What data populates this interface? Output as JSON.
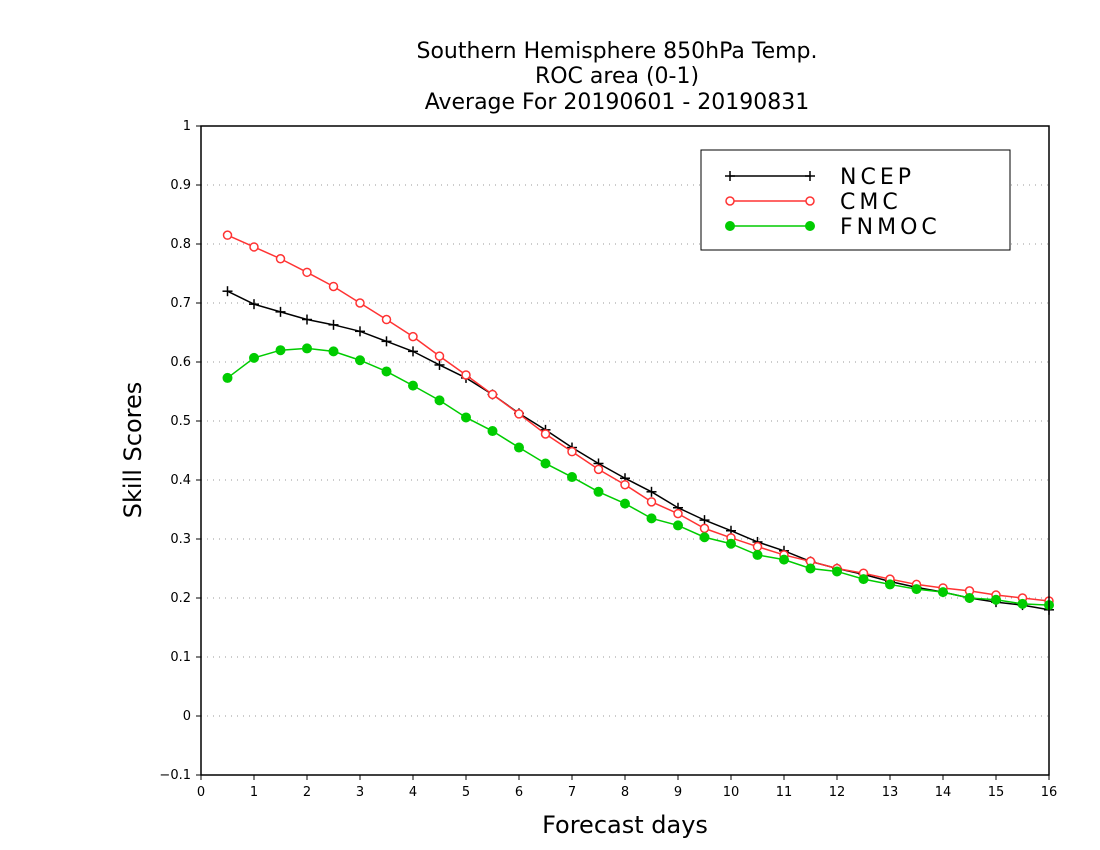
{
  "chart_data": {
    "type": "line",
    "title": [
      "Southern Hemisphere 850hPa Temp.",
      "ROC area (0-1)",
      "Average For 20190601 - 20190831"
    ],
    "xlabel": "Forecast days",
    "ylabel": "Skill Scores",
    "xlim": [
      0,
      16
    ],
    "ylim": [
      -0.1,
      1
    ],
    "xticks": [
      "0",
      "1",
      "2",
      "3",
      "4",
      "5",
      "6",
      "7",
      "8",
      "9",
      "10",
      "11",
      "12",
      "13",
      "14",
      "15",
      "16"
    ],
    "yticks": [
      "−0.1",
      "0",
      "0.1",
      "0.2",
      "0.3",
      "0.4",
      "0.5",
      "0.6",
      "0.7",
      "0.8",
      "0.9",
      "1"
    ],
    "grid": true,
    "legend_position": "top-right",
    "x": [
      0.5,
      1,
      1.5,
      2,
      2.5,
      3,
      3.5,
      4,
      4.5,
      5,
      5.5,
      6,
      6.5,
      7,
      7.5,
      8,
      8.5,
      9,
      9.5,
      10,
      10.5,
      11,
      11.5,
      12,
      12.5,
      13,
      13.5,
      14,
      14.5,
      15,
      15.5,
      16
    ],
    "series": [
      {
        "name": "NCEP",
        "color": "#000000",
        "marker": "plus",
        "values": [
          0.72,
          0.698,
          0.685,
          0.672,
          0.663,
          0.652,
          0.635,
          0.618,
          0.595,
          0.573,
          0.545,
          0.513,
          0.485,
          0.455,
          0.428,
          0.403,
          0.38,
          0.353,
          0.332,
          0.314,
          0.295,
          0.28,
          0.262,
          0.25,
          0.24,
          0.228,
          0.218,
          0.21,
          0.2,
          0.193,
          0.188,
          0.18
        ]
      },
      {
        "name": "CMC",
        "color": "#ff3333",
        "marker": "open-circle",
        "values": [
          0.815,
          0.795,
          0.775,
          0.752,
          0.728,
          0.7,
          0.672,
          0.643,
          0.61,
          0.578,
          0.545,
          0.512,
          0.478,
          0.448,
          0.418,
          0.392,
          0.363,
          0.343,
          0.318,
          0.302,
          0.287,
          0.273,
          0.262,
          0.25,
          0.242,
          0.232,
          0.223,
          0.217,
          0.212,
          0.205,
          0.2,
          0.195
        ]
      },
      {
        "name": "FNMOC",
        "color": "#00cc00",
        "marker": "filled-circle",
        "values": [
          0.573,
          0.607,
          0.62,
          0.623,
          0.618,
          0.603,
          0.584,
          0.56,
          0.535,
          0.506,
          0.483,
          0.455,
          0.428,
          0.405,
          0.38,
          0.36,
          0.335,
          0.323,
          0.303,
          0.292,
          0.273,
          0.265,
          0.25,
          0.245,
          0.232,
          0.223,
          0.215,
          0.21,
          0.2,
          0.197,
          0.19,
          0.188
        ]
      }
    ]
  }
}
